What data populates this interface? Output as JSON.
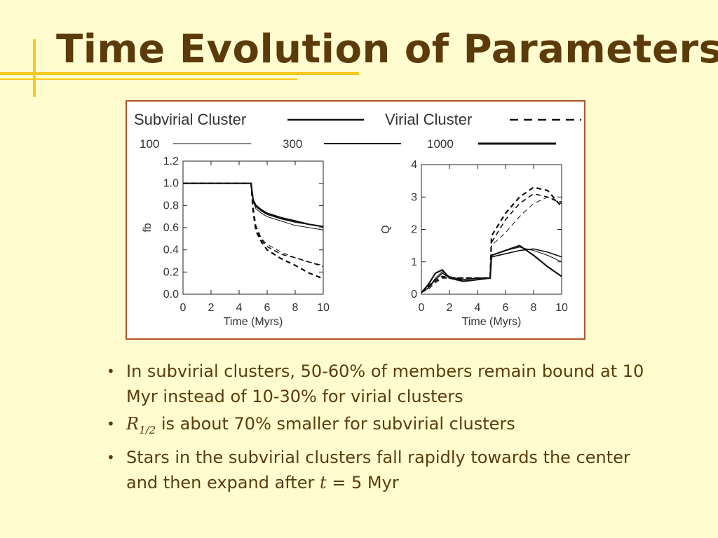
{
  "slide": {
    "title": "Time Evolution of Parameters",
    "accent_color": "#f5c81c",
    "title_color": "#5c3b0a",
    "frame_color": "#b5532a"
  },
  "legend": {
    "subvirial_label": "Subvirial Cluster",
    "virial_label": "Virial Cluster",
    "n_labels": [
      "100",
      "300",
      "1000"
    ]
  },
  "bullets": [
    {
      "text": "In subvirial clusters, 50-60% of members remain bound at 10 Myr instead of 10-30% for virial clusters"
    },
    {
      "symbol": "R",
      "subscript": "1/2",
      "text": " is about 70% smaller for subvirial clusters"
    },
    {
      "text_before": "Stars in the subvirial clusters fall rapidly towards the center and then expand after ",
      "symbol": "t",
      "text_after": " = 5 Myr"
    }
  ],
  "chart_data": [
    {
      "type": "line",
      "xlabel": "Time (Myrs)",
      "ylabel": "fb",
      "xlim": [
        0,
        10
      ],
      "ylim": [
        0,
        1.2
      ],
      "xticks": [
        0,
        2,
        4,
        6,
        8,
        10
      ],
      "yticks": [
        0.0,
        0.2,
        0.4,
        0.6,
        0.8,
        1.0,
        1.2
      ],
      "ytick_labels": [
        "0.0",
        "0.2",
        "0.4",
        "0.6",
        "0.8",
        "1.0",
        "1.2"
      ],
      "series": [
        {
          "cluster": "Subvirial",
          "n": "100",
          "x": [
            0,
            4.85,
            5.0,
            5.2,
            5.6,
            6,
            7,
            8,
            9,
            10
          ],
          "y": [
            1.0,
            1.0,
            0.84,
            0.77,
            0.73,
            0.7,
            0.66,
            0.62,
            0.6,
            0.58
          ]
        },
        {
          "cluster": "Subvirial",
          "n": "300",
          "x": [
            0,
            4.85,
            5.0,
            5.2,
            5.6,
            6,
            7,
            8,
            9,
            10
          ],
          "y": [
            1.0,
            1.0,
            0.84,
            0.79,
            0.75,
            0.72,
            0.68,
            0.65,
            0.63,
            0.61
          ]
        },
        {
          "cluster": "Subvirial",
          "n": "1000",
          "x": [
            0,
            4.85,
            5.0,
            5.2,
            5.6,
            6,
            7,
            8,
            9,
            10
          ],
          "y": [
            1.0,
            1.0,
            0.85,
            0.8,
            0.76,
            0.73,
            0.69,
            0.66,
            0.63,
            0.61
          ]
        },
        {
          "cluster": "Virial",
          "n": "100",
          "x": [
            0,
            4.85,
            5.0,
            5.2,
            5.6,
            6,
            7,
            8,
            9,
            10
          ],
          "y": [
            1.0,
            1.0,
            0.8,
            0.62,
            0.5,
            0.45,
            0.38,
            0.33,
            0.29,
            0.26
          ]
        },
        {
          "cluster": "Virial",
          "n": "300",
          "x": [
            0,
            4.85,
            5.0,
            5.2,
            5.6,
            6,
            7,
            8,
            9,
            10
          ],
          "y": [
            1.0,
            1.0,
            0.78,
            0.6,
            0.49,
            0.43,
            0.36,
            0.33,
            0.29,
            0.25
          ]
        },
        {
          "cluster": "Virial",
          "n": "1000",
          "x": [
            0,
            4.85,
            5.0,
            5.2,
            5.6,
            6,
            7,
            8,
            9,
            10
          ],
          "y": [
            1.0,
            1.0,
            0.75,
            0.57,
            0.47,
            0.4,
            0.32,
            0.26,
            0.19,
            0.14
          ]
        }
      ]
    },
    {
      "type": "line",
      "xlabel": "Time (Myrs)",
      "ylabel": "Q",
      "xlim": [
        0,
        10
      ],
      "ylim": [
        0,
        4
      ],
      "xticks": [
        0,
        2,
        4,
        6,
        8,
        10
      ],
      "yticks": [
        0,
        1,
        2,
        3,
        4
      ],
      "ytick_labels": [
        "0",
        "1",
        "2",
        "3",
        "4"
      ],
      "series": [
        {
          "cluster": "Subvirial",
          "n": "100",
          "x": [
            0,
            0.5,
            1,
            1.5,
            2,
            3,
            4,
            4.9,
            5.0,
            6,
            7,
            8,
            9,
            10
          ],
          "y": [
            0.05,
            0.2,
            0.5,
            0.7,
            0.55,
            0.45,
            0.5,
            0.5,
            1.2,
            1.35,
            1.45,
            1.35,
            1.2,
            1.0
          ]
        },
        {
          "cluster": "Subvirial",
          "n": "300",
          "x": [
            0,
            0.5,
            1,
            1.5,
            2,
            3,
            4,
            4.9,
            5.0,
            6,
            7,
            8,
            9,
            10
          ],
          "y": [
            0.05,
            0.2,
            0.45,
            0.65,
            0.5,
            0.45,
            0.5,
            0.5,
            1.15,
            1.25,
            1.35,
            1.4,
            1.3,
            1.15
          ]
        },
        {
          "cluster": "Subvirial",
          "n": "1000",
          "x": [
            0,
            0.5,
            1,
            1.5,
            2,
            3,
            4,
            4.9,
            5.0,
            6,
            7,
            8,
            9,
            10
          ],
          "y": [
            0.05,
            0.3,
            0.65,
            0.75,
            0.5,
            0.4,
            0.45,
            0.5,
            1.2,
            1.35,
            1.5,
            1.2,
            0.85,
            0.55
          ]
        },
        {
          "cluster": "Virial",
          "n": "100",
          "x": [
            0,
            0.5,
            1,
            1.5,
            2,
            3,
            4,
            4.9,
            5.0,
            6,
            7,
            8,
            9,
            10
          ],
          "y": [
            0.05,
            0.15,
            0.35,
            0.5,
            0.5,
            0.5,
            0.5,
            0.5,
            1.5,
            1.9,
            2.4,
            2.8,
            3.0,
            2.85
          ]
        },
        {
          "cluster": "Virial",
          "n": "300",
          "x": [
            0,
            0.5,
            1,
            1.5,
            2,
            3,
            4,
            4.9,
            5.0,
            6,
            7,
            8,
            9,
            10
          ],
          "y": [
            0.05,
            0.2,
            0.4,
            0.5,
            0.5,
            0.5,
            0.5,
            0.5,
            1.6,
            2.3,
            2.8,
            3.1,
            3.0,
            2.8
          ]
        },
        {
          "cluster": "Virial",
          "n": "1000",
          "x": [
            0,
            0.5,
            1,
            1.5,
            2,
            3,
            4,
            4.9,
            5.0,
            6,
            7,
            8,
            9,
            10
          ],
          "y": [
            0.05,
            0.25,
            0.45,
            0.55,
            0.5,
            0.5,
            0.5,
            0.5,
            1.8,
            2.5,
            3.0,
            3.3,
            3.2,
            2.7
          ]
        }
      ]
    }
  ]
}
